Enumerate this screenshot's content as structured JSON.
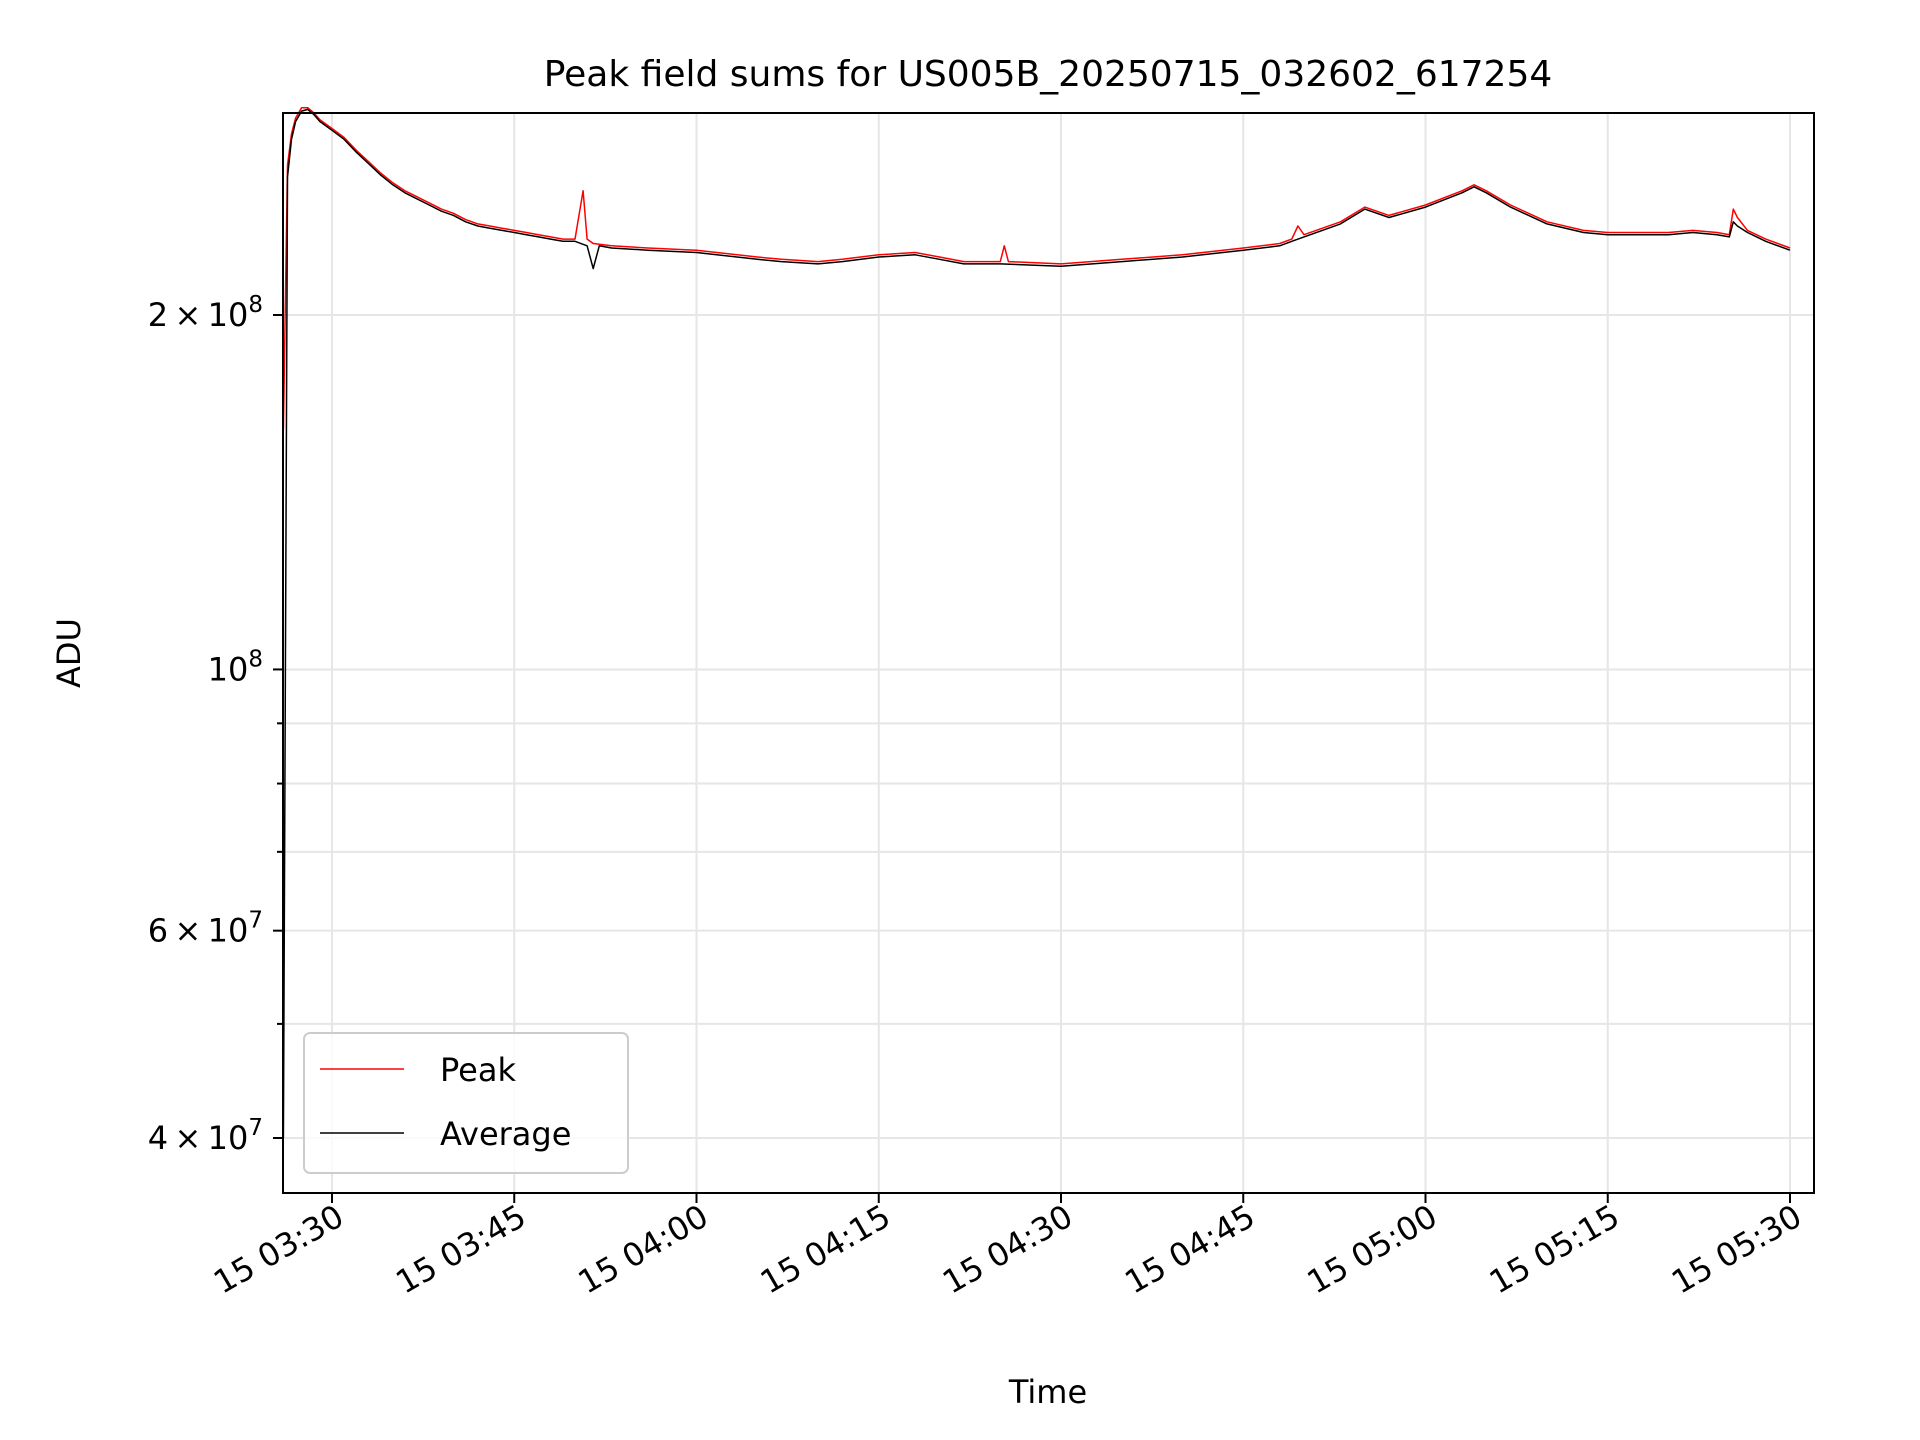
{
  "chart_data": {
    "type": "line",
    "title": "Peak field sums for US005B_20250715_032602_617254",
    "xlabel": "Time",
    "ylabel": "ADU",
    "yscale": "log",
    "x_unit": "time (day 15, HH:MM)",
    "xlim": [
      "15 03:26",
      "15 05:30"
    ],
    "ylim": [
      37000000,
      300000000
    ],
    "x_ticks": [
      {
        "value": "15 03:30",
        "label": "15 03:30"
      },
      {
        "value": "15 03:45",
        "label": "15 03:45"
      },
      {
        "value": "15 04:00",
        "label": "15 04:00"
      },
      {
        "value": "15 04:15",
        "label": "15 04:15"
      },
      {
        "value": "15 04:30",
        "label": "15 04:30"
      },
      {
        "value": "15 04:45",
        "label": "15 04:45"
      },
      {
        "value": "15 05:00",
        "label": "15 05:00"
      },
      {
        "value": "15 05:15",
        "label": "15 05:15"
      },
      {
        "value": "15 05:30",
        "label": "15 05:30"
      }
    ],
    "y_major_ticks": [
      {
        "value": 40000000,
        "base": "4",
        "exp": "7"
      },
      {
        "value": 60000000,
        "base": "6",
        "exp": "7"
      },
      {
        "value": 100000000,
        "base": "",
        "exp": "8"
      },
      {
        "value": 200000000,
        "base": "2",
        "exp": "8"
      }
    ],
    "y_minor_ticks": [
      50000000,
      70000000,
      80000000,
      90000000
    ],
    "grid": true,
    "legend_position": "lower-left",
    "series": [
      {
        "name": "Peak",
        "color": "#ff0000",
        "points": [
          [
            "15 03:26",
            160000000
          ],
          [
            "15 03:26:20",
            268000000
          ],
          [
            "15 03:26:40",
            285000000
          ],
          [
            "15 03:27",
            294000000
          ],
          [
            "15 03:27:30",
            300000000
          ],
          [
            "15 03:28",
            300000000
          ],
          [
            "15 03:28:30",
            297000000
          ],
          [
            "15 03:29",
            293000000
          ],
          [
            "15 03:30",
            288000000
          ],
          [
            "15 03:31",
            283000000
          ],
          [
            "15 03:32",
            276000000
          ],
          [
            "15 03:33",
            270000000
          ],
          [
            "15 03:34",
            264000000
          ],
          [
            "15 03:35",
            259000000
          ],
          [
            "15 03:36",
            255000000
          ],
          [
            "15 03:37",
            252000000
          ],
          [
            "15 03:38",
            249000000
          ],
          [
            "15 03:39",
            246000000
          ],
          [
            "15 03:40",
            244000000
          ],
          [
            "15 03:41",
            241000000
          ],
          [
            "15 03:42",
            239000000
          ],
          [
            "15 03:43",
            238000000
          ],
          [
            "15 03:44",
            237000000
          ],
          [
            "15 03:45",
            236000000
          ],
          [
            "15 03:46",
            235000000
          ],
          [
            "15 03:47",
            234000000
          ],
          [
            "15 03:48",
            233000000
          ],
          [
            "15 03:49",
            232000000
          ],
          [
            "15 03:50",
            232000000
          ],
          [
            "15 03:50:40",
            255000000
          ],
          [
            "15 03:51",
            232000000
          ],
          [
            "15 03:51:30",
            230000000
          ],
          [
            "15 03:53",
            229000000
          ],
          [
            "15 03:56",
            228000000
          ],
          [
            "15 04:00",
            227000000
          ],
          [
            "15 04:05",
            224000000
          ],
          [
            "15 04:07",
            223000000
          ],
          [
            "15 04:10",
            222000000
          ],
          [
            "15 04:12",
            223000000
          ],
          [
            "15 04:15",
            225000000
          ],
          [
            "15 04:18",
            226000000
          ],
          [
            "15 04:20",
            224000000
          ],
          [
            "15 04:22",
            222000000
          ],
          [
            "15 04:25",
            222000000
          ],
          [
            "15 04:25:20",
            229000000
          ],
          [
            "15 04:25:40",
            222000000
          ],
          [
            "15 04:30",
            221000000
          ],
          [
            "15 04:35",
            223000000
          ],
          [
            "15 04:40",
            225000000
          ],
          [
            "15 04:45",
            228000000
          ],
          [
            "15 04:48",
            230000000
          ],
          [
            "15 04:49",
            232000000
          ],
          [
            "15 04:49:30",
            238000000
          ],
          [
            "15 04:50",
            234000000
          ],
          [
            "15 04:53",
            240000000
          ],
          [
            "15 04:55",
            247000000
          ],
          [
            "15 04:57",
            243000000
          ],
          [
            "15 05:00",
            248000000
          ],
          [
            "15 05:03",
            255000000
          ],
          [
            "15 05:04",
            258000000
          ],
          [
            "15 05:05",
            255000000
          ],
          [
            "15 05:07",
            248000000
          ],
          [
            "15 05:10",
            240000000
          ],
          [
            "15 05:13",
            236000000
          ],
          [
            "15 05:15",
            235000000
          ],
          [
            "15 05:18",
            235000000
          ],
          [
            "15 05:20",
            235000000
          ],
          [
            "15 05:22",
            236000000
          ],
          [
            "15 05:24",
            235000000
          ],
          [
            "15 05:25",
            234000000
          ],
          [
            "15 05:25:20",
            246000000
          ],
          [
            "15 05:25:40",
            242000000
          ],
          [
            "15 05:26:30",
            236000000
          ],
          [
            "15 05:28",
            232000000
          ],
          [
            "15 05:30",
            228000000
          ]
        ]
      },
      {
        "name": "Average",
        "color": "#000000",
        "points": [
          [
            "15 03:26",
            40000000
          ],
          [
            "15 03:26:20",
            262000000
          ],
          [
            "15 03:26:40",
            282000000
          ],
          [
            "15 03:27",
            292000000
          ],
          [
            "15 03:27:30",
            298000000
          ],
          [
            "15 03:28",
            299000000
          ],
          [
            "15 03:28:30",
            296000000
          ],
          [
            "15 03:29",
            292000000
          ],
          [
            "15 03:30",
            287000000
          ],
          [
            "15 03:31",
            282000000
          ],
          [
            "15 03:32",
            275000000
          ],
          [
            "15 03:33",
            269000000
          ],
          [
            "15 03:34",
            263000000
          ],
          [
            "15 03:35",
            258000000
          ],
          [
            "15 03:36",
            254000000
          ],
          [
            "15 03:37",
            251000000
          ],
          [
            "15 03:38",
            248000000
          ],
          [
            "15 03:39",
            245000000
          ],
          [
            "15 03:40",
            243000000
          ],
          [
            "15 03:41",
            240000000
          ],
          [
            "15 03:42",
            238000000
          ],
          [
            "15 03:43",
            237000000
          ],
          [
            "15 03:44",
            236000000
          ],
          [
            "15 03:45",
            235000000
          ],
          [
            "15 03:46",
            234000000
          ],
          [
            "15 03:47",
            233000000
          ],
          [
            "15 03:48",
            232000000
          ],
          [
            "15 03:49",
            231000000
          ],
          [
            "15 03:50",
            231000000
          ],
          [
            "15 03:51",
            229000000
          ],
          [
            "15 03:51:30",
            219000000
          ],
          [
            "15 03:52",
            229000000
          ],
          [
            "15 03:53",
            228000000
          ],
          [
            "15 03:56",
            227000000
          ],
          [
            "15 04:00",
            226000000
          ],
          [
            "15 04:05",
            223000000
          ],
          [
            "15 04:07",
            222000000
          ],
          [
            "15 04:10",
            221000000
          ],
          [
            "15 04:12",
            222000000
          ],
          [
            "15 04:15",
            224000000
          ],
          [
            "15 04:18",
            225000000
          ],
          [
            "15 04:20",
            223000000
          ],
          [
            "15 04:22",
            221000000
          ],
          [
            "15 04:25",
            221000000
          ],
          [
            "15 04:30",
            220000000
          ],
          [
            "15 04:35",
            222000000
          ],
          [
            "15 04:40",
            224000000
          ],
          [
            "15 04:45",
            227000000
          ],
          [
            "15 04:48",
            229000000
          ],
          [
            "15 04:49",
            231000000
          ],
          [
            "15 04:50",
            233000000
          ],
          [
            "15 04:53",
            239000000
          ],
          [
            "15 04:55",
            246000000
          ],
          [
            "15 04:57",
            242000000
          ],
          [
            "15 05:00",
            247000000
          ],
          [
            "15 05:03",
            254000000
          ],
          [
            "15 05:04",
            257000000
          ],
          [
            "15 05:05",
            254000000
          ],
          [
            "15 05:07",
            247000000
          ],
          [
            "15 05:10",
            239000000
          ],
          [
            "15 05:13",
            235000000
          ],
          [
            "15 05:15",
            234000000
          ],
          [
            "15 05:18",
            234000000
          ],
          [
            "15 05:20",
            234000000
          ],
          [
            "15 05:22",
            235000000
          ],
          [
            "15 05:24",
            234000000
          ],
          [
            "15 05:25",
            233000000
          ],
          [
            "15 05:25:20",
            240000000
          ],
          [
            "15 05:25:40",
            238000000
          ],
          [
            "15 05:26:30",
            235000000
          ],
          [
            "15 05:28",
            231000000
          ],
          [
            "15 05:30",
            227000000
          ]
        ]
      }
    ]
  }
}
